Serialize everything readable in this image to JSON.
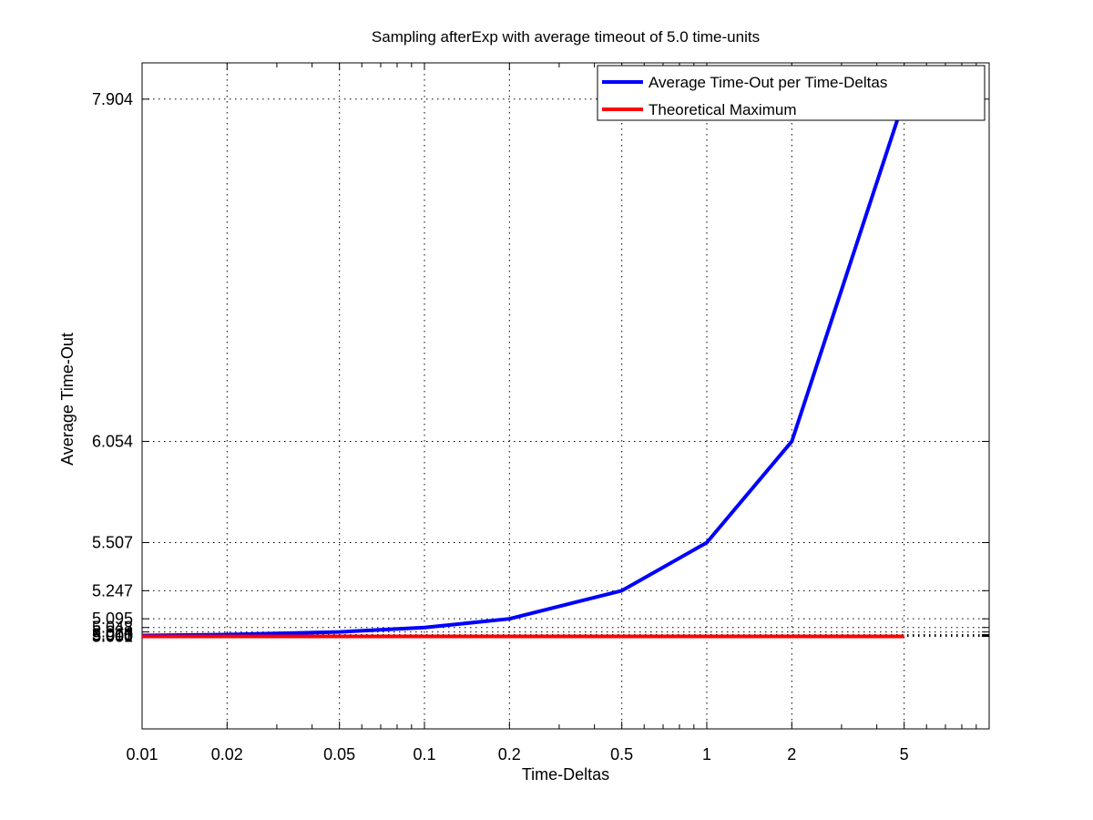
{
  "chart_data": {
    "type": "line",
    "title": "Sampling afterExp with average timeout of 5.0 time-units",
    "xlabel": "Time-Deltas",
    "ylabel": "Average Time-Out",
    "xscale": "log",
    "xlim": [
      0.01,
      10
    ],
    "ylim": [
      4.5,
      8.1
    ],
    "grid": true,
    "legend_position": "top-right",
    "x_ticks": [
      0.01,
      0.02,
      0.05,
      0.1,
      0.2,
      0.5,
      1,
      2,
      5
    ],
    "x_tick_labels": [
      "0.01",
      "0.02",
      "0.05",
      "0.1",
      "0.2",
      "0.5",
      "1",
      "2",
      "5"
    ],
    "y_ticks": [
      5.0,
      5.001,
      5.005,
      5.01,
      5.024,
      5.048,
      5.095,
      5.247,
      5.507,
      6.054,
      7.904
    ],
    "y_tick_labels": [
      "5.000",
      "5.001",
      "5.005",
      "5.010",
      "5.024",
      "5.048",
      "5.095",
      "5.247",
      "5.507",
      "6.054",
      "7.904"
    ],
    "series": [
      {
        "name": "Average Time-Out per Time-Deltas",
        "color": "#0000ff",
        "x": [
          0.01,
          0.02,
          0.05,
          0.1,
          0.2,
          0.5,
          1,
          2,
          5
        ],
        "y": [
          5.005,
          5.01,
          5.024,
          5.048,
          5.095,
          5.247,
          5.507,
          6.054,
          7.904
        ]
      },
      {
        "name": "Theoretical Maximum",
        "color": "#ff0000",
        "x": [
          0.01,
          5
        ],
        "y": [
          5.0,
          5.0
        ]
      }
    ]
  }
}
